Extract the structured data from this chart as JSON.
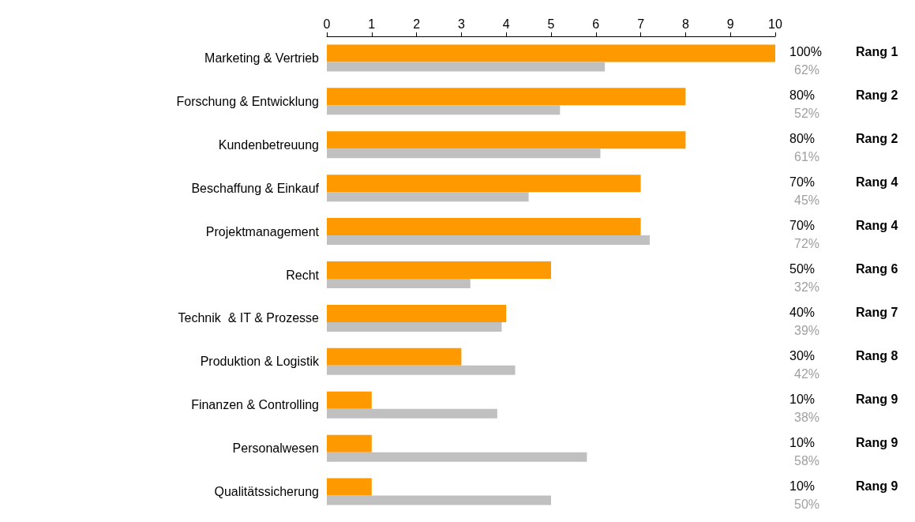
{
  "chart_data": {
    "type": "bar",
    "orientation": "horizontal",
    "categories": [
      "Marketing & Vertrieb",
      "Forschung & Entwicklung",
      "Kundenbetreuung",
      "Beschaffung & Einkauf",
      "Projektmanagement",
      "Recht",
      "Technik  & IT & Prozesse",
      "Produktion & Logistik",
      "Finanzen & Controlling",
      "Personalwesen",
      "Qualitätssicherung"
    ],
    "series": [
      {
        "color": "#ff9900",
        "values": [
          10,
          8,
          8,
          7,
          7,
          5,
          4,
          3,
          1,
          1,
          1
        ]
      },
      {
        "color": "#c0c0c0",
        "values": [
          6.2,
          5.2,
          6.1,
          4.5,
          7.2,
          3.2,
          3.9,
          4.2,
          3.8,
          5.8,
          5.0
        ]
      }
    ],
    "xlim": [
      0,
      10
    ],
    "xticks": [
      0,
      1,
      2,
      3,
      4,
      5,
      6,
      7,
      8,
      9,
      10
    ],
    "grid": false,
    "annotations": [
      "100%",
      "62%",
      "Rang 1",
      "80%",
      "52%",
      "Rang 2",
      "80%",
      "61%",
      "Rang 2",
      "70%",
      "45%",
      "Rang 4",
      "70%",
      "72%",
      "Rang 4",
      "50%",
      "32%",
      "Rang 6",
      "40%",
      "39%",
      "Rang 7",
      "30%",
      "42%",
      "Rang 8",
      "10%",
      "38%",
      "Rang 9",
      "10%",
      "58%",
      "Rang 9",
      "10%",
      "50%",
      "Rang 9"
    ]
  }
}
